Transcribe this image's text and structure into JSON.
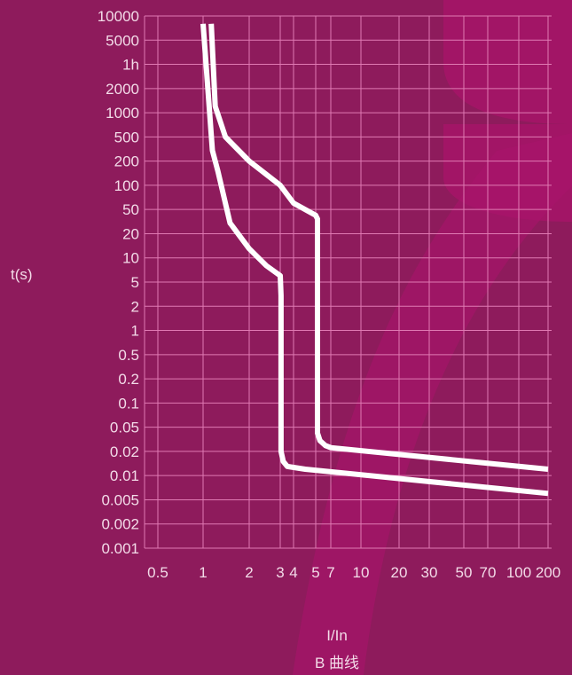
{
  "chart_data": {
    "type": "line",
    "title": "B 曲线",
    "xlabel": "I/In",
    "ylabel": "t(s)",
    "x_scale": "log",
    "y_scale": "log",
    "xlim": [
      0.5,
      200
    ],
    "ylim": [
      0.001,
      10000
    ],
    "x_ticks": [
      0.5,
      1,
      2,
      3,
      4,
      5,
      7,
      10,
      20,
      30,
      50,
      70,
      100,
      200
    ],
    "x_tick_labels": [
      "0.5",
      "1",
      "2",
      "3",
      "4",
      "5",
      "7",
      "10",
      "20",
      "30",
      "50",
      "70",
      "100",
      "200"
    ],
    "y_ticks": [
      10000,
      5000,
      3600,
      2000,
      1000,
      500,
      200,
      100,
      50,
      20,
      10,
      5,
      2,
      1,
      0.5,
      0.2,
      0.1,
      0.05,
      0.02,
      0.01,
      0.005,
      0.002,
      0.001
    ],
    "y_tick_labels": [
      "10000",
      "5000",
      "1h",
      "2000",
      "1000",
      "500",
      "200",
      "100",
      "50",
      "20",
      "10",
      "5",
      "2",
      "1",
      "0.5",
      "0.2",
      "0.1",
      "0.05",
      "0.02",
      "0.01",
      "0.005",
      "0.002",
      "0.001"
    ],
    "grid": true,
    "line_color": "#ffffff",
    "grid_color": "#e07ab3",
    "series": [
      {
        "x": [
          1.0,
          1.15,
          1.25,
          1.5,
          2.0,
          2.5,
          3.0,
          3.05,
          3.05,
          3.2,
          3.5,
          4.5,
          200
        ],
        "y": [
          8000,
          300,
          150,
          30,
          13,
          8,
          6,
          3,
          0.02,
          0.015,
          0.013,
          0.012,
          0.006
        ]
      },
      {
        "x": [
          1.13,
          1.2,
          1.4,
          2.0,
          3.0,
          4.0,
          5.0,
          5.2,
          5.2,
          5.5,
          6.2,
          7.0,
          200
        ],
        "y": [
          8000,
          1200,
          500,
          200,
          100,
          60,
          40,
          35,
          0.04,
          0.03,
          0.025,
          0.023,
          0.012
        ]
      }
    ]
  }
}
